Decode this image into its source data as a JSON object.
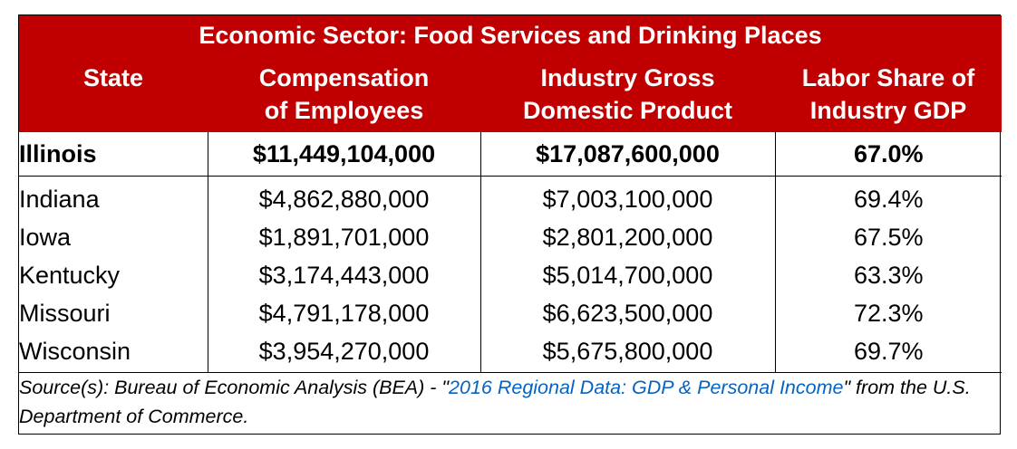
{
  "title": "Economic Sector: Food Services and Drinking Places",
  "columns": [
    {
      "line1": "State",
      "line2": ""
    },
    {
      "line1": "Compensation",
      "line2": "of Employees"
    },
    {
      "line1": "Industry Gross",
      "line2": "Domestic Product"
    },
    {
      "line1": "Labor Share of",
      "line2": "Industry GDP"
    }
  ],
  "highlight_row": {
    "state": "Illinois",
    "compensation": "$11,449,104,000",
    "gdp": "$17,087,600,000",
    "labor_share": "67.0%"
  },
  "rows": [
    {
      "state": "Indiana",
      "compensation": "$4,862,880,000",
      "gdp": "$7,003,100,000",
      "labor_share": "69.4%"
    },
    {
      "state": "Iowa",
      "compensation": "$1,891,701,000",
      "gdp": "$2,801,200,000",
      "labor_share": "67.5%"
    },
    {
      "state": "Kentucky",
      "compensation": "$3,174,443,000",
      "gdp": "$5,014,700,000",
      "labor_share": "63.3%"
    },
    {
      "state": "Missouri",
      "compensation": "$4,791,178,000",
      "gdp": "$6,623,500,000",
      "labor_share": "72.3%"
    },
    {
      "state": "Wisconsin",
      "compensation": "$3,954,270,000",
      "gdp": "$5,675,800,000",
      "labor_share": "69.7%"
    }
  ],
  "source": {
    "prefix": "Source(s): Bureau of Economic Analysis (BEA) - \"",
    "link_text": "2016 Regional Data: GDP & Personal Income",
    "suffix": "\" from the U.S. Department of Commerce."
  },
  "colors": {
    "header_bg": "#c00000",
    "header_text": "#ffffff",
    "link": "#0563c1"
  }
}
